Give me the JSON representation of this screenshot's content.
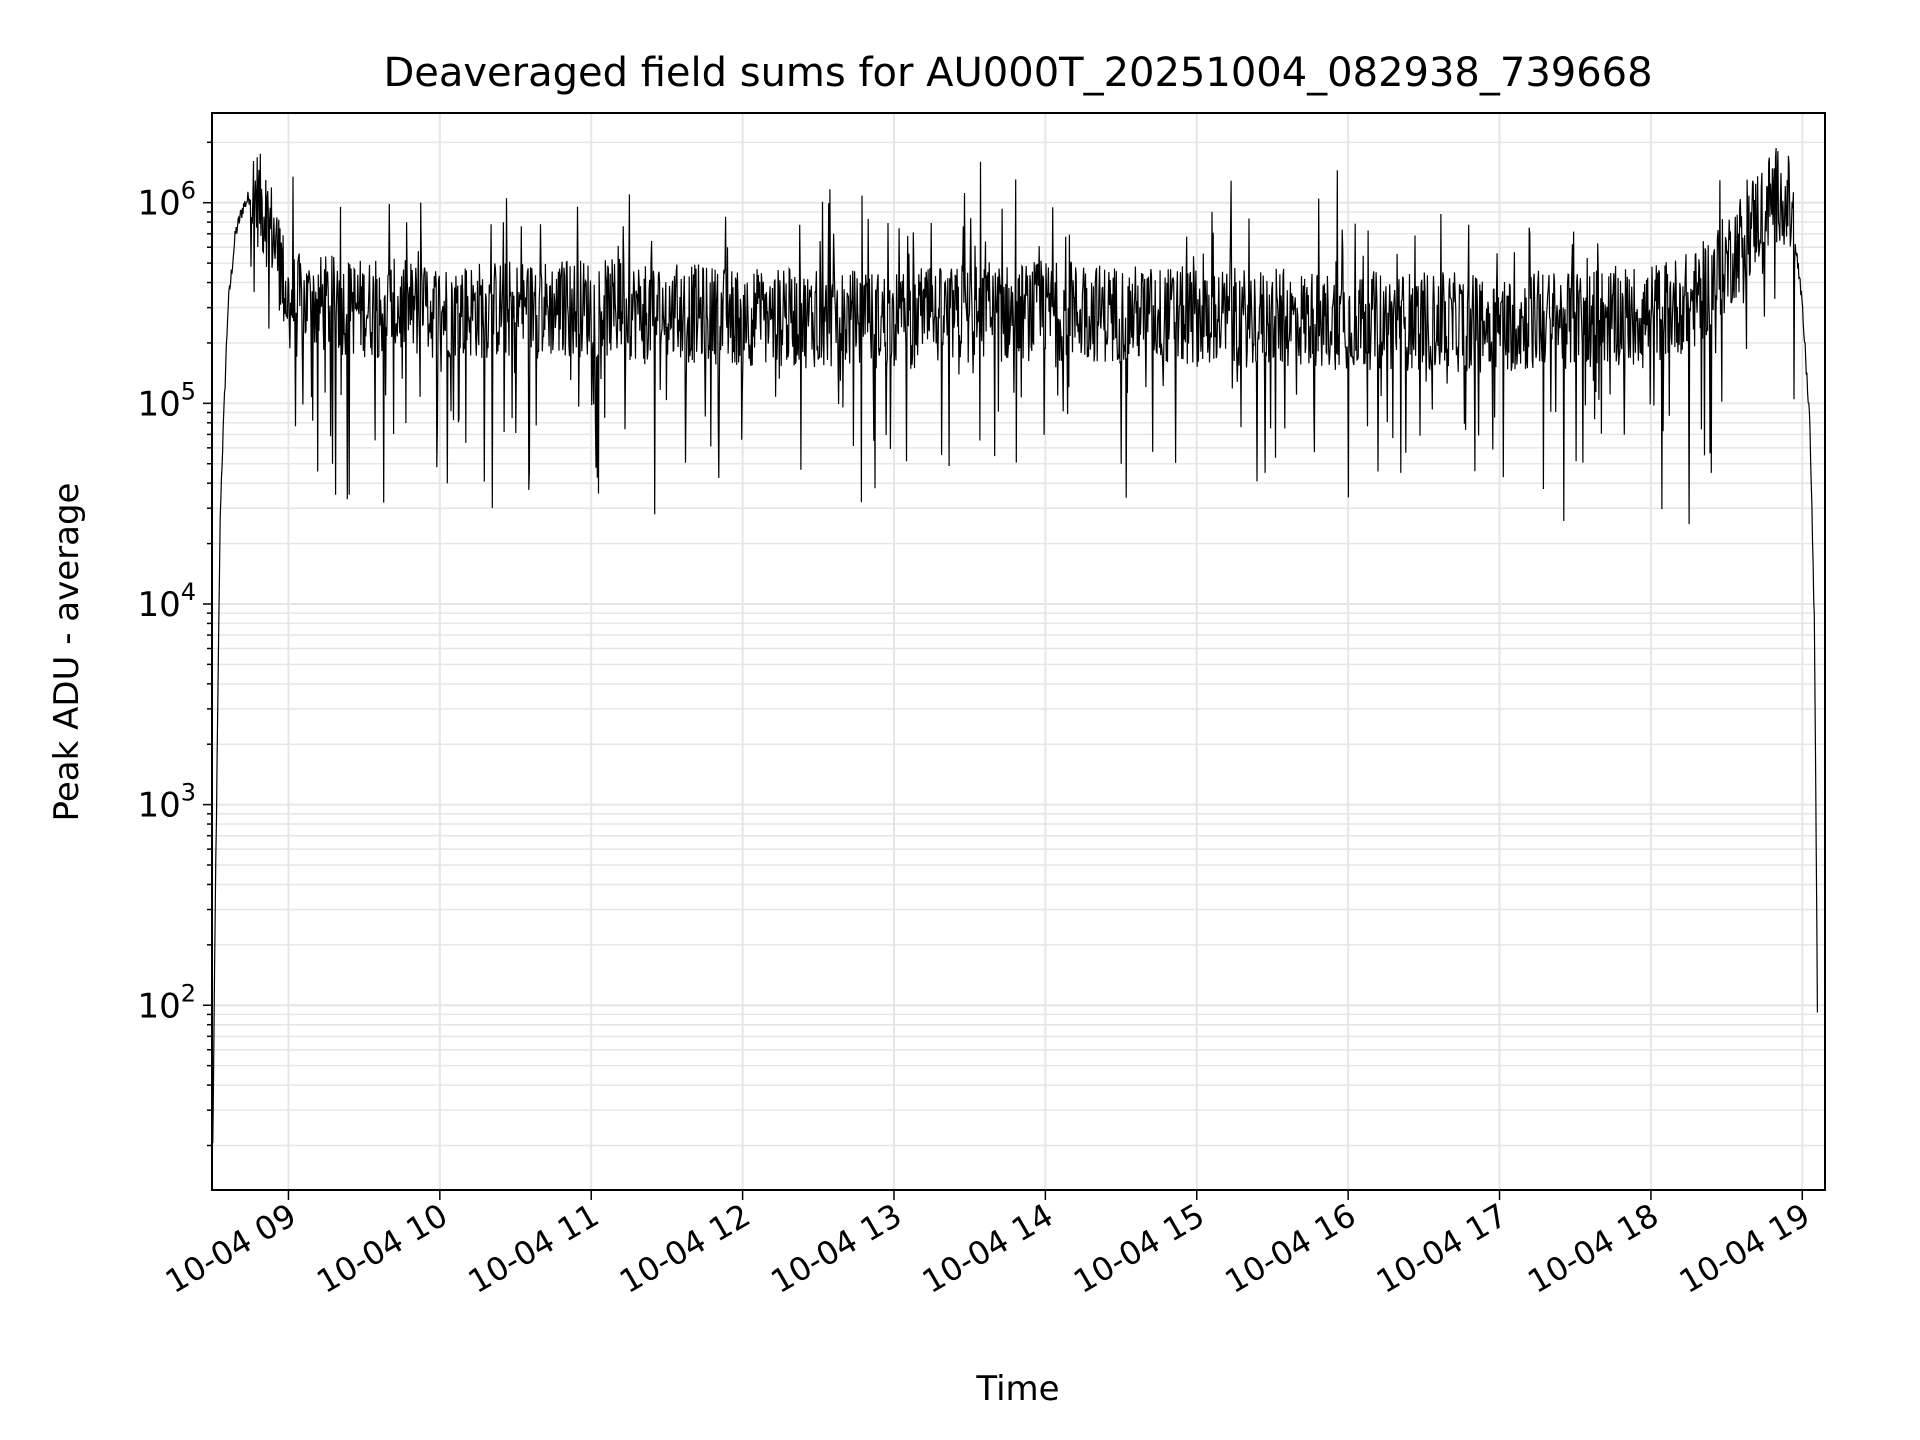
{
  "chart_data": {
    "type": "line",
    "title": "Deaveraged field sums for AU000T_20251004_082938_739668",
    "xlabel": "Time",
    "ylabel": "Peak ADU - average",
    "yscale": "log",
    "ylim": [
      12,
      2800000
    ],
    "xlim_hours": [
      8.495,
      19.15
    ],
    "x_ticks": [
      {
        "label": "10-04 09",
        "hour": 9
      },
      {
        "label": "10-04 10",
        "hour": 10
      },
      {
        "label": "10-04 11",
        "hour": 11
      },
      {
        "label": "10-04 12",
        "hour": 12
      },
      {
        "label": "10-04 13",
        "hour": 13
      },
      {
        "label": "10-04 14",
        "hour": 14
      },
      {
        "label": "10-04 15",
        "hour": 15
      },
      {
        "label": "10-04 16",
        "hour": 16
      },
      {
        "label": "10-04 17",
        "hour": 17
      },
      {
        "label": "10-04 18",
        "hour": 18
      },
      {
        "label": "10-04 19",
        "hour": 19
      }
    ],
    "y_ticks": [
      {
        "base": "10",
        "exp": "2",
        "value": 100
      },
      {
        "base": "10",
        "exp": "3",
        "value": 1000
      },
      {
        "base": "10",
        "exp": "4",
        "value": 10000
      },
      {
        "base": "10",
        "exp": "5",
        "value": 100000
      },
      {
        "base": "10",
        "exp": "6",
        "value": 1000000
      }
    ],
    "grid": true,
    "line_color": "#000000",
    "grid_color": "#e6e6e6",
    "series": [
      {
        "name": "deaveraged field sum",
        "envelope_hours": [
          8.5,
          8.52,
          8.55,
          8.6,
          8.65,
          8.7,
          8.75,
          8.8,
          8.9,
          9.0,
          9.5,
          10.0,
          11.0,
          12.0,
          13.0,
          14.0,
          15.0,
          16.0,
          17.0,
          18.0,
          18.3,
          18.5,
          18.7,
          18.8,
          18.85,
          18.9,
          18.95,
          19.0,
          19.05,
          19.08,
          19.1
        ],
        "envelope_values": [
          20,
          500,
          30000,
          300000,
          700000,
          950000,
          1100000,
          1050000,
          700000,
          320000,
          300000,
          290000,
          300000,
          270000,
          260000,
          290000,
          270000,
          260000,
          250000,
          280000,
          330000,
          500000,
          850000,
          1050000,
          1100000,
          1050000,
          700000,
          300000,
          80000,
          8000,
          100
        ],
        "spikes_hours": [
          8.85,
          9.03,
          9.4,
          9.63,
          9.78,
          10.05,
          10.42,
          11.25,
          11.42,
          11.9,
          12.6,
          13.57,
          14.05,
          14.5,
          15.1,
          15.45,
          15.93,
          16.0,
          16.35,
          17.2,
          18.25,
          18.4,
          18.9
        ],
        "spikes_values": [
          1300000,
          1350000,
          35000,
          32000,
          800000,
          40000,
          800000,
          1100000,
          28000,
          600000,
          700000,
          1600000,
          950000,
          50000,
          900000,
          45000,
          1450000,
          34000,
          45000,
          700000,
          25000,
          45000,
          1300000
        ]
      }
    ]
  }
}
